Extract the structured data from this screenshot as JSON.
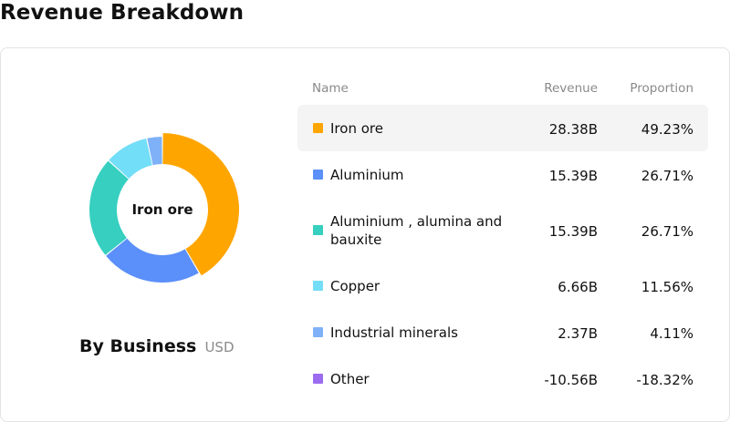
{
  "page": {
    "title": "Revenue Breakdown"
  },
  "donut": {
    "center_label": "Iron ore"
  },
  "caption": {
    "title": "By Business",
    "unit": "USD"
  },
  "table": {
    "headers": {
      "name": "Name",
      "revenue": "Revenue",
      "proportion": "Proportion"
    },
    "rows": [
      {
        "name": "Iron ore",
        "revenue": "28.38B",
        "proportion": "49.23%",
        "color": "#FFA500",
        "active": true
      },
      {
        "name": "Aluminium",
        "revenue": "15.39B",
        "proportion": "26.71%",
        "color": "#5B8FF9",
        "active": false
      },
      {
        "name": "Aluminium , alumina and bauxite",
        "revenue": "15.39B",
        "proportion": "26.71%",
        "color": "#36CFC0",
        "active": false
      },
      {
        "name": "Copper",
        "revenue": "6.66B",
        "proportion": "11.56%",
        "color": "#73DEF8",
        "active": false
      },
      {
        "name": "Industrial minerals",
        "revenue": "2.37B",
        "proportion": "4.11%",
        "color": "#7EB1F7",
        "active": false
      },
      {
        "name": "Other",
        "revenue": "-10.56B",
        "proportion": "-18.32%",
        "color": "#9B6CF0",
        "active": false
      }
    ]
  },
  "chart_data": {
    "type": "pie",
    "title": "By Business",
    "unit": "USD",
    "categories": [
      "Iron ore",
      "Aluminium",
      "Aluminium , alumina and bauxite",
      "Copper",
      "Industrial minerals",
      "Other"
    ],
    "values": [
      28.38,
      15.39,
      15.39,
      6.66,
      2.37,
      -10.56
    ],
    "proportions": [
      49.23,
      26.71,
      26.71,
      11.56,
      4.11,
      -18.32
    ],
    "colors": [
      "#FFA500",
      "#5B8FF9",
      "#36CFC0",
      "#73DEF8",
      "#7EB1F7",
      "#9B6CF0"
    ],
    "highlighted": "Iron ore"
  }
}
